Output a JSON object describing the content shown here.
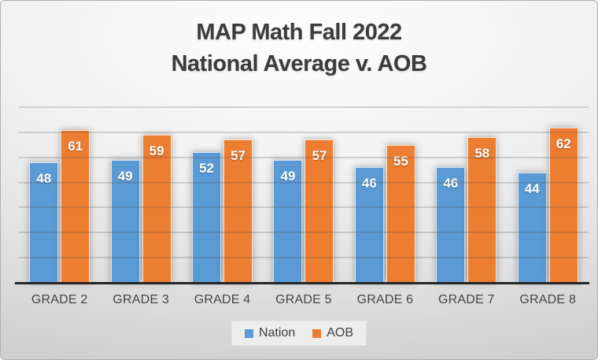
{
  "chart_data": {
    "type": "bar",
    "title": "MAP Math Fall 2022 National Average v. AOB",
    "title_lines": [
      "MAP Math Fall 2022",
      "National Average v. AOB"
    ],
    "categories": [
      "GRADE 2",
      "GRADE 3",
      "GRADE 4",
      "GRADE 5",
      "GRADE 6",
      "GRADE 7",
      "GRADE 8"
    ],
    "series": [
      {
        "name": "Nation",
        "color": "#5B9BD5",
        "values": [
          48,
          49,
          52,
          49,
          46,
          46,
          44
        ]
      },
      {
        "name": "AOB",
        "color": "#ED7D31",
        "values": [
          61,
          59,
          57,
          57,
          55,
          58,
          62
        ]
      }
    ],
    "ylim": [
      0,
      70
    ],
    "gridline_step": 10,
    "grid": true,
    "y_tick_labels_visible": false,
    "data_labels": "inside-end",
    "legend_position": "bottom",
    "xlabel": "",
    "ylabel": ""
  },
  "colors": {
    "nation_bar": "#5B9BD5",
    "aob_bar": "#ED7D31",
    "title_text": "#3C3C3C",
    "axis_line": "#262626",
    "category_label_text": "#454545",
    "legend_background": "#EDEDED",
    "data_label_text": "#FFFFFF"
  }
}
